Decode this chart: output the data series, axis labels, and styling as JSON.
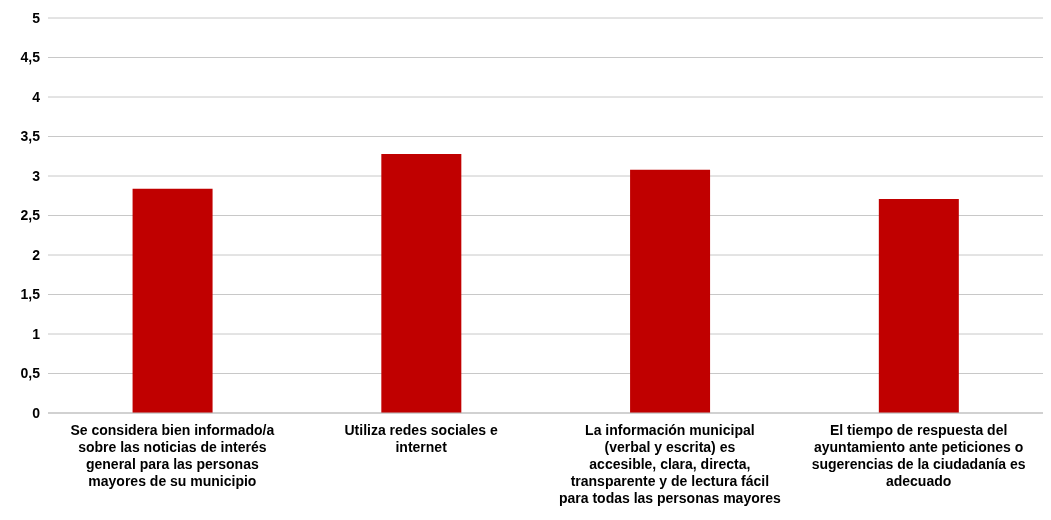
{
  "chart_data": {
    "type": "bar",
    "categories": [
      "Se considera bien informado/a sobre las noticias de interés general para las personas mayores de su municipio",
      "Utiliza redes sociales e internet",
      "La información municipal (verbal y escrita) es accesible, clara, directa, transparente y de lectura fácil para todas las personas mayores",
      "El tiempo de respuesta del ayuntamiento ante peticiones o sugerencias de la ciudadanía es adecuado"
    ],
    "values": [
      2.84,
      3.28,
      3.08,
      2.71
    ],
    "color": "#c00000",
    "ylim": [
      0,
      5
    ],
    "yticks": [
      0,
      {
        "value": 0.5,
        "label": "0,5"
      },
      1,
      {
        "value": 1.5,
        "label": "1,5"
      },
      2,
      {
        "value": 2.5,
        "label": "2,5"
      },
      3,
      {
        "value": 3.5,
        "label": "3,5"
      },
      4,
      {
        "value": 4.5,
        "label": "4,5"
      },
      5
    ],
    "grid": "y"
  }
}
